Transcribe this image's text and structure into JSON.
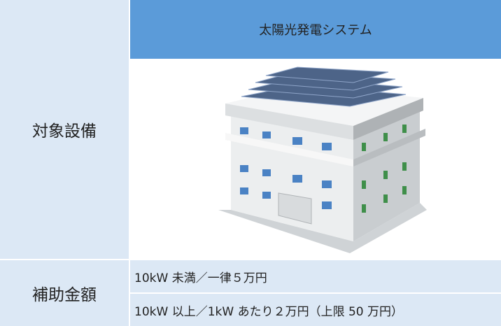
{
  "target": {
    "label": "対象設備",
    "item": "太陽光発電システム"
  },
  "subsidy": {
    "label": "補助金額",
    "lines": [
      "10kW 未満／一律５万円",
      "10kW 以上／1kW あたり２万円（上限 50 万円）"
    ]
  }
}
